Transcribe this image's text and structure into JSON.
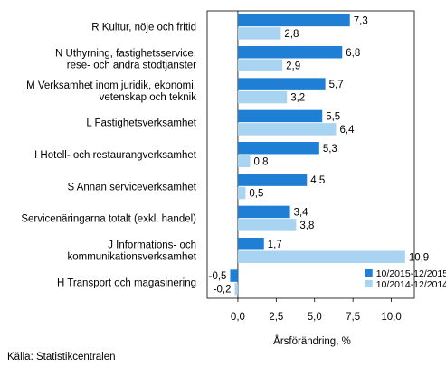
{
  "chart_data": {
    "type": "bar",
    "orientation": "horizontal",
    "categories": [
      [
        "R Kultur, nöje och fritid"
      ],
      [
        "N Uthyrning, fastighetsservice,",
        "rese- och andra stödtjänster"
      ],
      [
        "M Verksamhet inom juridik, ekonomi,",
        "vetenskap och teknik"
      ],
      [
        "L Fastighetsverksamhet"
      ],
      [
        "I Hotell- och restaurangverksamhet"
      ],
      [
        "S Annan serviceverksamhet"
      ],
      [
        "Servicenäringarna totalt (exkl. handel)"
      ],
      [
        "J Informations- och",
        "kommunikationsverksamhet"
      ],
      [
        "H Transport och magasinering"
      ]
    ],
    "series": [
      {
        "name": "10/2015-12/2015",
        "color": "#1f7fd4",
        "values": [
          7.3,
          6.8,
          5.7,
          5.5,
          5.3,
          4.5,
          3.4,
          1.7,
          -0.5
        ],
        "labels": [
          "7,3",
          "6,8",
          "5,7",
          "5,5",
          "5,3",
          "4,5",
          "3,4",
          "1,7",
          "-0,5"
        ]
      },
      {
        "name": "10/2014-12/2014",
        "color": "#a8d4f2",
        "values": [
          2.8,
          2.9,
          3.2,
          6.4,
          0.8,
          0.5,
          3.8,
          10.9,
          -0.2
        ],
        "labels": [
          "2,8",
          "2,9",
          "3,2",
          "6,4",
          "0,8",
          "0,5",
          "3,8",
          "10,9",
          "-0,2"
        ]
      }
    ],
    "xlim": [
      -2,
      11.5
    ],
    "xticks": [
      0,
      2.5,
      5,
      7.5,
      10
    ],
    "xtick_labels": [
      "0,0",
      "2,5",
      "5,0",
      "7,5",
      "10,0"
    ],
    "xlabel": "Årsförändring, %",
    "legend_position": "bottom-right"
  },
  "source": "Källa: Statistikcentralen"
}
